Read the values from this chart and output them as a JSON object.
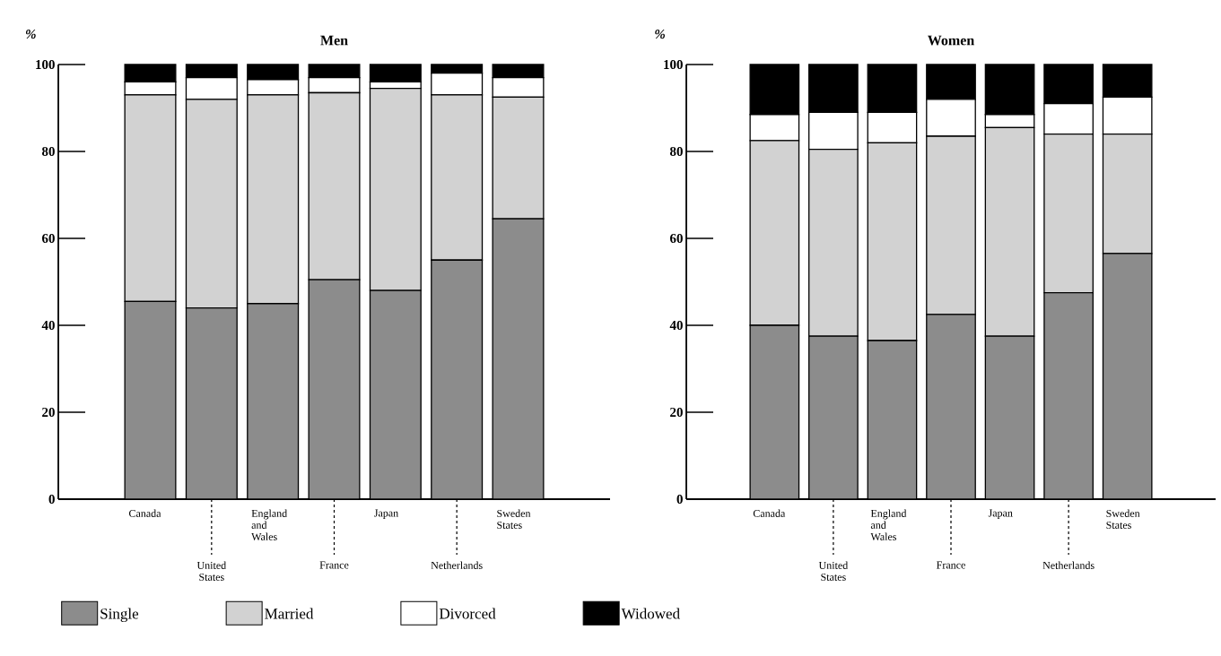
{
  "chart_data": [
    {
      "type": "bar",
      "stacked": true,
      "title": "Men",
      "ylabel": "%",
      "legend": "bottom",
      "categories": [
        "Canada",
        "United States",
        "England and Wales",
        "France",
        "Japan",
        "Netherlands",
        "Sweden States"
      ],
      "ylim": [
        0,
        100
      ],
      "yticks": [
        0,
        20,
        40,
        60,
        80,
        100
      ],
      "series": [
        {
          "name": "Single",
          "color": "#8c8c8c",
          "values": [
            45.5,
            44,
            45,
            50.5,
            48,
            55,
            64.5
          ]
        },
        {
          "name": "Married",
          "color": "#d2d2d2",
          "values": [
            47.5,
            48,
            48,
            43,
            46.5,
            38,
            28
          ]
        },
        {
          "name": "Divorced",
          "color": "#ffffff",
          "values": [
            3,
            5,
            3.5,
            3.5,
            1.5,
            5,
            4.5
          ]
        },
        {
          "name": "Widowed",
          "color": "#000000",
          "values": [
            4,
            3,
            3.5,
            3,
            4,
            2,
            3
          ]
        }
      ]
    },
    {
      "type": "bar",
      "stacked": true,
      "title": "Women",
      "ylabel": "%",
      "categories": [
        "Canada",
        "United States",
        "England and Wales",
        "France",
        "Japan",
        "Netherlands",
        "Sweden States"
      ],
      "ylim": [
        0,
        100
      ],
      "yticks": [
        0,
        20,
        40,
        60,
        80,
        100
      ],
      "series": [
        {
          "color": "#8c8c8c",
          "values": [
            40,
            37.5,
            36.5,
            42.5,
            37.5,
            47.5,
            56.5
          ]
        },
        {
          "color": "#d2d2d2",
          "values": [
            42.5,
            43,
            45.5,
            41,
            48,
            36.5,
            27.5
          ]
        },
        {
          "color": "#ffffff",
          "values": [
            6,
            8.5,
            7,
            8.5,
            3,
            7,
            8.5
          ]
        },
        {
          "color": "#000000",
          "values": [
            11.5,
            11,
            11,
            8,
            11.5,
            9,
            7.5
          ]
        }
      ]
    }
  ]
}
